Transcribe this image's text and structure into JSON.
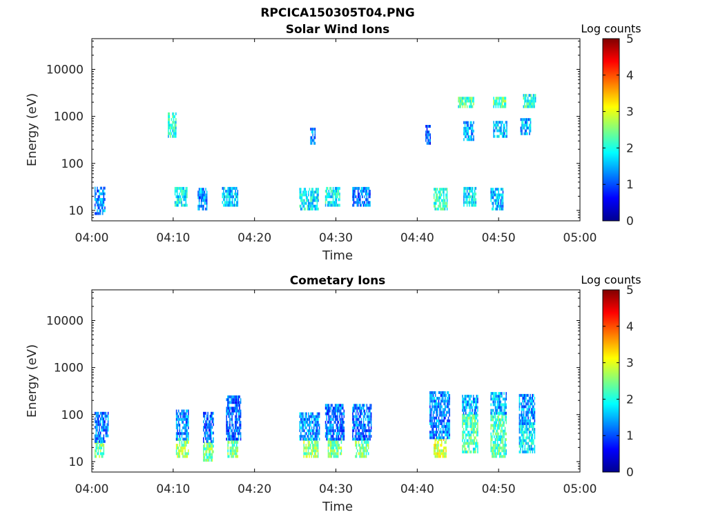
{
  "figure": {
    "filename": "RPCICA150305T04.PNG"
  },
  "colorbar": {
    "label": "Log counts",
    "ticks": [
      "0",
      "1",
      "2",
      "3",
      "4",
      "5"
    ],
    "range": [
      0,
      5
    ],
    "colormap": [
      "#00008f",
      "#0000ff",
      "#0080ff",
      "#00ffff",
      "#80ff80",
      "#ffff00",
      "#ff8000",
      "#ff0000",
      "#800000"
    ]
  },
  "chart_data": [
    {
      "type": "heatmap",
      "title": "Solar Wind Ions",
      "xlabel": "Time",
      "ylabel": "Energy (eV)",
      "xlim": [
        "04:00",
        "05:00"
      ],
      "ylim_eV": [
        6,
        45000
      ],
      "yscale": "log",
      "xticks": [
        "04:00",
        "04:10",
        "04:20",
        "04:30",
        "04:40",
        "04:50",
        "05:00"
      ],
      "yticks": [
        "10",
        "100",
        "1000",
        "10000"
      ],
      "band_data": [
        {
          "t": [
            "04:00:20",
            "04:01:40"
          ],
          "e": [
            8,
            30
          ],
          "log_counts": 1.3
        },
        {
          "t": [
            "04:10:10",
            "04:11:40"
          ],
          "e": [
            12,
            30
          ],
          "log_counts": 1.8
        },
        {
          "t": [
            "04:09:20",
            "04:10:20"
          ],
          "e": [
            350,
            1100
          ],
          "log_counts": 2.0
        },
        {
          "t": [
            "04:13:00",
            "04:14:10"
          ],
          "e": [
            10,
            30
          ],
          "log_counts": 1.3
        },
        {
          "t": [
            "04:16:00",
            "04:18:00"
          ],
          "e": [
            12,
            30
          ],
          "log_counts": 1.6
        },
        {
          "t": [
            "04:25:30",
            "04:27:50"
          ],
          "e": [
            10,
            30
          ],
          "log_counts": 1.8
        },
        {
          "t": [
            "04:28:40",
            "04:30:30"
          ],
          "e": [
            12,
            30
          ],
          "log_counts": 1.9
        },
        {
          "t": [
            "04:32:00",
            "04:34:10"
          ],
          "e": [
            12,
            30
          ],
          "log_counts": 1.2
        },
        {
          "t": [
            "04:42:00",
            "04:43:40"
          ],
          "e": [
            10,
            30
          ],
          "log_counts": 2.1
        },
        {
          "t": [
            "04:45:40",
            "04:47:10"
          ],
          "e": [
            12,
            30
          ],
          "log_counts": 1.8
        },
        {
          "t": [
            "04:49:00",
            "04:50:30"
          ],
          "e": [
            10,
            30
          ],
          "log_counts": 1.5
        },
        {
          "t": [
            "04:45:00",
            "04:47:00"
          ],
          "e": [
            1500,
            2500
          ],
          "log_counts": 2.2
        },
        {
          "t": [
            "04:49:20",
            "04:50:50"
          ],
          "e": [
            1500,
            2500
          ],
          "log_counts": 2.3
        },
        {
          "t": [
            "04:53:00",
            "04:54:30"
          ],
          "e": [
            1500,
            2800
          ],
          "log_counts": 2.0
        },
        {
          "t": [
            "04:45:40",
            "04:47:00"
          ],
          "e": [
            300,
            700
          ],
          "log_counts": 1.5
        },
        {
          "t": [
            "04:49:20",
            "04:51:00"
          ],
          "e": [
            350,
            800
          ],
          "log_counts": 1.6
        },
        {
          "t": [
            "04:52:40",
            "04:54:00"
          ],
          "e": [
            400,
            900
          ],
          "log_counts": 1.5
        },
        {
          "t": [
            "04:41:00",
            "04:41:40"
          ],
          "e": [
            250,
            600
          ],
          "log_counts": 1.0
        },
        {
          "t": [
            "04:26:50",
            "04:27:30"
          ],
          "e": [
            250,
            500
          ],
          "log_counts": 1.2
        }
      ]
    },
    {
      "type": "heatmap",
      "title": "Cometary Ions",
      "xlabel": "Time",
      "ylabel": "Energy (eV)",
      "xlim": [
        "04:00",
        "05:00"
      ],
      "ylim_eV": [
        6,
        45000
      ],
      "yscale": "log",
      "xticks": [
        "04:00",
        "04:10",
        "04:20",
        "04:30",
        "04:40",
        "04:50",
        "05:00"
      ],
      "yticks": [
        "10",
        "100",
        "1000",
        "10000"
      ],
      "band_data": [
        {
          "t": [
            "04:00:20",
            "04:01:30"
          ],
          "e": [
            12,
            25
          ],
          "log_counts": 2.4
        },
        {
          "t": [
            "04:00:20",
            "04:02:00"
          ],
          "e": [
            25,
            100
          ],
          "log_counts": 1.2
        },
        {
          "t": [
            "04:10:20",
            "04:11:50"
          ],
          "e": [
            12,
            28
          ],
          "log_counts": 2.6
        },
        {
          "t": [
            "04:10:20",
            "04:11:50"
          ],
          "e": [
            28,
            120
          ],
          "log_counts": 1.3
        },
        {
          "t": [
            "04:13:40",
            "04:15:00"
          ],
          "e": [
            10,
            25
          ],
          "log_counts": 2.5
        },
        {
          "t": [
            "04:13:40",
            "04:15:00"
          ],
          "e": [
            25,
            100
          ],
          "log_counts": 1.2
        },
        {
          "t": [
            "04:16:40",
            "04:18:00"
          ],
          "e": [
            12,
            28
          ],
          "log_counts": 2.4
        },
        {
          "t": [
            "04:16:30",
            "04:18:20"
          ],
          "e": [
            28,
            250
          ],
          "log_counts": 1.1
        },
        {
          "t": [
            "04:26:00",
            "04:27:50"
          ],
          "e": [
            12,
            28
          ],
          "log_counts": 2.6
        },
        {
          "t": [
            "04:25:30",
            "04:28:00"
          ],
          "e": [
            28,
            100
          ],
          "log_counts": 1.3
        },
        {
          "t": [
            "04:29:00",
            "04:30:40"
          ],
          "e": [
            12,
            28
          ],
          "log_counts": 2.5
        },
        {
          "t": [
            "04:28:40",
            "04:31:00"
          ],
          "e": [
            28,
            150
          ],
          "log_counts": 1.2
        },
        {
          "t": [
            "04:32:20",
            "04:34:00"
          ],
          "e": [
            12,
            28
          ],
          "log_counts": 2.5
        },
        {
          "t": [
            "04:32:00",
            "04:34:20"
          ],
          "e": [
            28,
            150
          ],
          "log_counts": 1.2
        },
        {
          "t": [
            "04:42:00",
            "04:43:30"
          ],
          "e": [
            12,
            30
          ],
          "log_counts": 2.9
        },
        {
          "t": [
            "04:41:30",
            "04:44:00"
          ],
          "e": [
            30,
            300
          ],
          "log_counts": 1.3
        },
        {
          "t": [
            "04:45:30",
            "04:47:30"
          ],
          "e": [
            15,
            100
          ],
          "log_counts": 2.2
        },
        {
          "t": [
            "04:45:30",
            "04:47:30"
          ],
          "e": [
            100,
            250
          ],
          "log_counts": 1.4
        },
        {
          "t": [
            "04:49:00",
            "04:51:00"
          ],
          "e": [
            12,
            100
          ],
          "log_counts": 2.2
        },
        {
          "t": [
            "04:49:00",
            "04:51:00"
          ],
          "e": [
            100,
            280
          ],
          "log_counts": 1.5
        },
        {
          "t": [
            "04:52:30",
            "04:54:30"
          ],
          "e": [
            15,
            60
          ],
          "log_counts": 1.8
        },
        {
          "t": [
            "04:52:30",
            "04:54:30"
          ],
          "e": [
            60,
            250
          ],
          "log_counts": 1.3
        }
      ]
    }
  ]
}
